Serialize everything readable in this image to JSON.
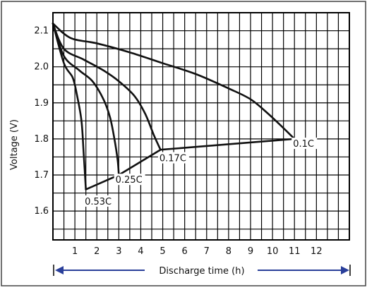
{
  "chart_data": {
    "type": "line",
    "title": "",
    "xlabel": "Discharge time (h)",
    "ylabel": "Voltage (V)",
    "xlim": [
      0,
      13.5
    ],
    "ylim": [
      1.52,
      2.15
    ],
    "x_ticks": [
      1,
      2,
      3,
      4,
      5,
      6,
      7,
      8,
      9,
      10,
      11,
      12
    ],
    "y_ticks": [
      1.6,
      1.7,
      1.8,
      1.9,
      2.0,
      2.1
    ],
    "grid": true,
    "legend": "none",
    "colors": {
      "curve": "#111111",
      "axis_arrow": "#2a3f9a"
    },
    "series": [
      {
        "name": "0.1C",
        "label_pos": [
          11.0,
          1.78
        ],
        "points": [
          [
            0,
            2.12
          ],
          [
            0.8,
            2.08
          ],
          [
            2,
            2.065
          ],
          [
            3.5,
            2.04
          ],
          [
            5,
            2.01
          ],
          [
            6.5,
            1.98
          ],
          [
            8,
            1.94
          ],
          [
            9,
            1.91
          ],
          [
            9.8,
            1.87
          ],
          [
            10.5,
            1.83
          ],
          [
            11.0,
            1.8
          ]
        ]
      },
      {
        "name": "0.17C",
        "label_pos": [
          4.85,
          1.74
        ],
        "points": [
          [
            0,
            2.12
          ],
          [
            0.5,
            2.05
          ],
          [
            1.4,
            2.02
          ],
          [
            2.3,
            1.99
          ],
          [
            3,
            1.96
          ],
          [
            3.7,
            1.92
          ],
          [
            4.2,
            1.87
          ],
          [
            4.6,
            1.81
          ],
          [
            4.9,
            1.77
          ]
        ]
      },
      {
        "name": "0.25C",
        "label_pos": [
          2.85,
          1.68
        ],
        "points": [
          [
            0,
            2.12
          ],
          [
            0.5,
            2.03
          ],
          [
            1.2,
            1.99
          ],
          [
            1.8,
            1.96
          ],
          [
            2.3,
            1.91
          ],
          [
            2.6,
            1.86
          ],
          [
            2.8,
            1.8
          ],
          [
            2.95,
            1.74
          ],
          [
            3.0,
            1.7
          ]
        ]
      },
      {
        "name": "0.53C",
        "label_pos": [
          1.45,
          1.62
        ],
        "points": [
          [
            0,
            2.12
          ],
          [
            0.5,
            2.01
          ],
          [
            0.9,
            1.97
          ],
          [
            1.1,
            1.92
          ],
          [
            1.3,
            1.85
          ],
          [
            1.4,
            1.76
          ],
          [
            1.5,
            1.66
          ]
        ]
      },
      {
        "name": "end-voltage",
        "points": [
          [
            1.5,
            1.66
          ],
          [
            3.0,
            1.7
          ],
          [
            4.9,
            1.77
          ],
          [
            11.0,
            1.8
          ]
        ]
      }
    ]
  }
}
